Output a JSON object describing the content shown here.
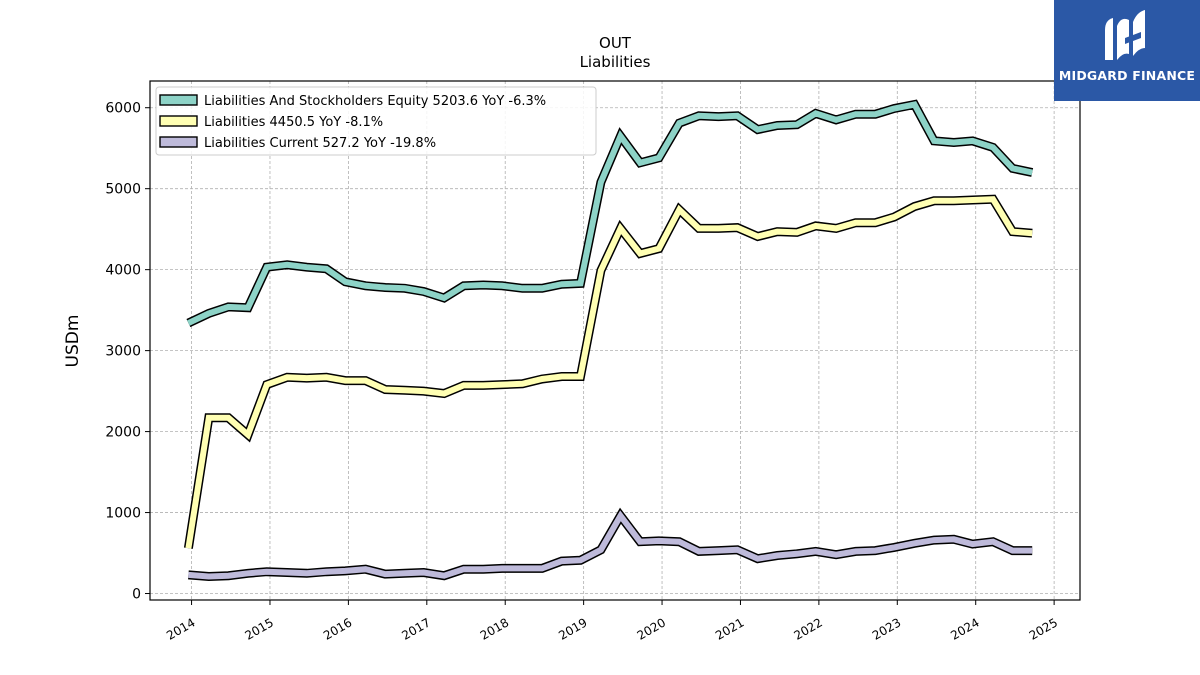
{
  "logo": {
    "text": "MIDGARD FINANCE",
    "background": "#2b58a6"
  },
  "chart_data": {
    "type": "line",
    "title": "OUT",
    "subtitle": "Liabilities",
    "ylabel": "USDm",
    "xlabel": "",
    "xlim": [
      2013.47,
      2025.33
    ],
    "ylim": [
      -80,
      6330
    ],
    "yticks": [
      0,
      1000,
      2000,
      3000,
      4000,
      5000,
      6000
    ],
    "xticks": [
      "2014",
      "2015",
      "2016",
      "2017",
      "2018",
      "2019",
      "2020",
      "2021",
      "2022",
      "2023",
      "2024",
      "2025"
    ],
    "grid": true,
    "legend_position": "top-left",
    "x": [
      2013.96,
      2014.22,
      2014.47,
      2014.72,
      2014.96,
      2015.22,
      2015.47,
      2015.72,
      2015.96,
      2016.22,
      2016.47,
      2016.72,
      2016.96,
      2017.22,
      2017.47,
      2017.72,
      2017.96,
      2018.22,
      2018.47,
      2018.72,
      2018.96,
      2019.22,
      2019.47,
      2019.72,
      2019.96,
      2020.22,
      2020.47,
      2020.72,
      2020.96,
      2021.22,
      2021.47,
      2021.72,
      2021.96,
      2022.22,
      2022.47,
      2022.72,
      2022.96,
      2023.22,
      2023.47,
      2023.72,
      2023.96,
      2024.22,
      2024.47,
      2024.72
    ],
    "series": [
      {
        "name": "Liabilities And Stockholders Equity",
        "legend": "Liabilities And Stockholders Equity  5203.6 YoY -6.3%",
        "color": "#8dd3c7",
        "values": [
          3340,
          3460,
          3540,
          3530,
          4030,
          4060,
          4030,
          4010,
          3850,
          3800,
          3780,
          3770,
          3730,
          3650,
          3800,
          3810,
          3800,
          3770,
          3770,
          3820,
          3830,
          5080,
          5650,
          5320,
          5380,
          5810,
          5900,
          5890,
          5900,
          5730,
          5780,
          5790,
          5930,
          5850,
          5920,
          5920,
          5990,
          6040,
          5590,
          5570,
          5590,
          5510,
          5250,
          5200
        ]
      },
      {
        "name": "Liabilities",
        "legend": "Liabilities  4450.5 YoY -8.1%",
        "color": "#ffffb3",
        "values": [
          560,
          2170,
          2170,
          1960,
          2580,
          2670,
          2660,
          2670,
          2630,
          2630,
          2520,
          2510,
          2500,
          2470,
          2570,
          2570,
          2580,
          2590,
          2650,
          2680,
          2680,
          3990,
          4510,
          4200,
          4260,
          4740,
          4510,
          4510,
          4520,
          4410,
          4470,
          4460,
          4540,
          4510,
          4580,
          4580,
          4650,
          4780,
          4850,
          4850,
          4860,
          4870,
          4470,
          4450
        ]
      },
      {
        "name": "Liabilities Current",
        "legend": "Liabilities Current  527.2 YoY -19.8%",
        "color": "#bebada",
        "values": [
          230,
          210,
          220,
          250,
          270,
          260,
          250,
          270,
          280,
          300,
          240,
          250,
          260,
          220,
          300,
          300,
          310,
          310,
          310,
          400,
          410,
          540,
          960,
          640,
          650,
          640,
          520,
          530,
          540,
          430,
          470,
          490,
          520,
          480,
          520,
          530,
          570,
          620,
          660,
          670,
          610,
          640,
          530,
          530
        ]
      }
    ]
  }
}
